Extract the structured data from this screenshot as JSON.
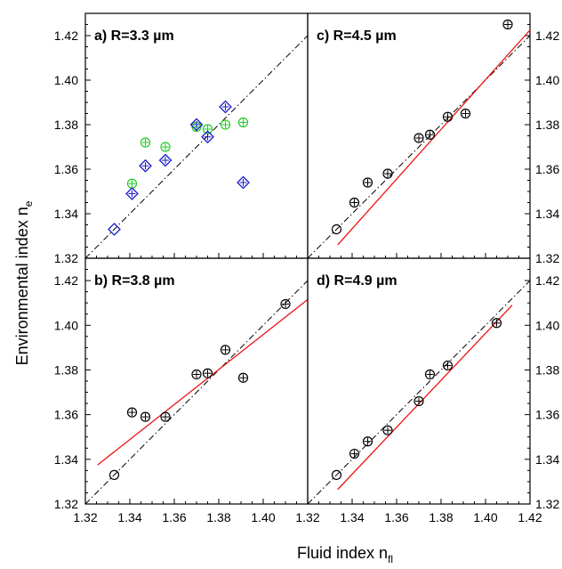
{
  "figure": {
    "xlabel": "Fluid index n",
    "xlabel_sub": "fl",
    "ylabel": "Environmental index n",
    "ylabel_sub": "e"
  },
  "chart_data": [
    {
      "id": "a",
      "type": "scatter",
      "title": "a)  R=3.3 µm",
      "xlim": [
        1.32,
        1.42
      ],
      "ylim": [
        1.32,
        1.43
      ],
      "xticks": [],
      "yticks": [
        "1.32",
        "1.34",
        "1.36",
        "1.38",
        "1.40",
        "1.42"
      ],
      "series": [
        {
          "marker": "circle-plus",
          "color": "#22cc22",
          "x": [
            1.341,
            1.347,
            1.356,
            1.37,
            1.375,
            1.383,
            1.391
          ],
          "y": [
            1.3535,
            1.372,
            1.37,
            1.379,
            1.378,
            1.38,
            1.381
          ]
        },
        {
          "marker": "diamond-plus",
          "color": "#1a1acc",
          "x": [
            1.341,
            1.347,
            1.356,
            1.37,
            1.375,
            1.383,
            1.391
          ],
          "y": [
            1.349,
            1.3615,
            1.364,
            1.38,
            1.3745,
            1.388,
            1.354
          ]
        },
        {
          "marker": "diamond",
          "color": "#1a1acc",
          "x": [
            1.333
          ],
          "y": [
            1.333
          ]
        }
      ],
      "diagonal": true,
      "fit": null
    },
    {
      "id": "c",
      "type": "scatter",
      "title": "c)  R=4.5 µm",
      "xlim": [
        1.32,
        1.42
      ],
      "ylim": [
        1.32,
        1.43
      ],
      "xticks": [],
      "yticks": [
        "1.32",
        "1.34",
        "1.36",
        "1.38",
        "1.40",
        "1.42"
      ],
      "series": [
        {
          "marker": "circle-plus",
          "color": "#000000",
          "x": [
            1.341,
            1.347,
            1.356,
            1.37,
            1.375,
            1.383,
            1.391,
            1.41
          ],
          "y": [
            1.345,
            1.354,
            1.358,
            1.374,
            1.3755,
            1.3835,
            1.385,
            1.425
          ]
        },
        {
          "marker": "circle",
          "color": "#000000",
          "x": [
            1.333
          ],
          "y": [
            1.333
          ]
        }
      ],
      "diagonal": true,
      "fit": {
        "color": "#ee1111",
        "x": [
          1.3335,
          1.42
        ],
        "y": [
          1.326,
          1.4225
        ]
      }
    },
    {
      "id": "b",
      "type": "scatter",
      "title": "b)  R=3.8 µm",
      "xlim": [
        1.32,
        1.42
      ],
      "ylim": [
        1.32,
        1.43
      ],
      "xticks": [
        "1.32",
        "1.34",
        "1.36",
        "1.38",
        "1.40"
      ],
      "yticks": [
        "1.32",
        "1.34",
        "1.36",
        "1.38",
        "1.40",
        "1.42"
      ],
      "series": [
        {
          "marker": "circle-plus",
          "color": "#000000",
          "x": [
            1.341,
            1.347,
            1.356,
            1.37,
            1.375,
            1.383,
            1.391,
            1.41
          ],
          "y": [
            1.361,
            1.359,
            1.359,
            1.378,
            1.3785,
            1.389,
            1.3765,
            1.4095
          ]
        },
        {
          "marker": "circle",
          "color": "#000000",
          "x": [
            1.333
          ],
          "y": [
            1.333
          ]
        }
      ],
      "diagonal": true,
      "fit": {
        "color": "#ee1111",
        "x": [
          1.3255,
          1.42
        ],
        "y": [
          1.3375,
          1.4115
        ]
      }
    },
    {
      "id": "d",
      "type": "scatter",
      "title": "d)  R=4.9 µm",
      "xlim": [
        1.32,
        1.42
      ],
      "ylim": [
        1.32,
        1.43
      ],
      "xticks": [
        "1.32",
        "1.34",
        "1.36",
        "1.38",
        "1.40",
        "1.42"
      ],
      "yticks": [
        "1.32",
        "1.34",
        "1.36",
        "1.38",
        "1.40",
        "1.42"
      ],
      "series": [
        {
          "marker": "circle-plus",
          "color": "#000000",
          "x": [
            1.341,
            1.347,
            1.356,
            1.37,
            1.375,
            1.383,
            1.405
          ],
          "y": [
            1.3425,
            1.348,
            1.353,
            1.366,
            1.378,
            1.382,
            1.401
          ]
        },
        {
          "marker": "circle",
          "color": "#000000",
          "x": [
            1.333
          ],
          "y": [
            1.333
          ]
        }
      ],
      "diagonal": true,
      "fit": {
        "color": "#ee1111",
        "x": [
          1.3335,
          1.412
        ],
        "y": [
          1.3265,
          1.409
        ]
      }
    }
  ]
}
